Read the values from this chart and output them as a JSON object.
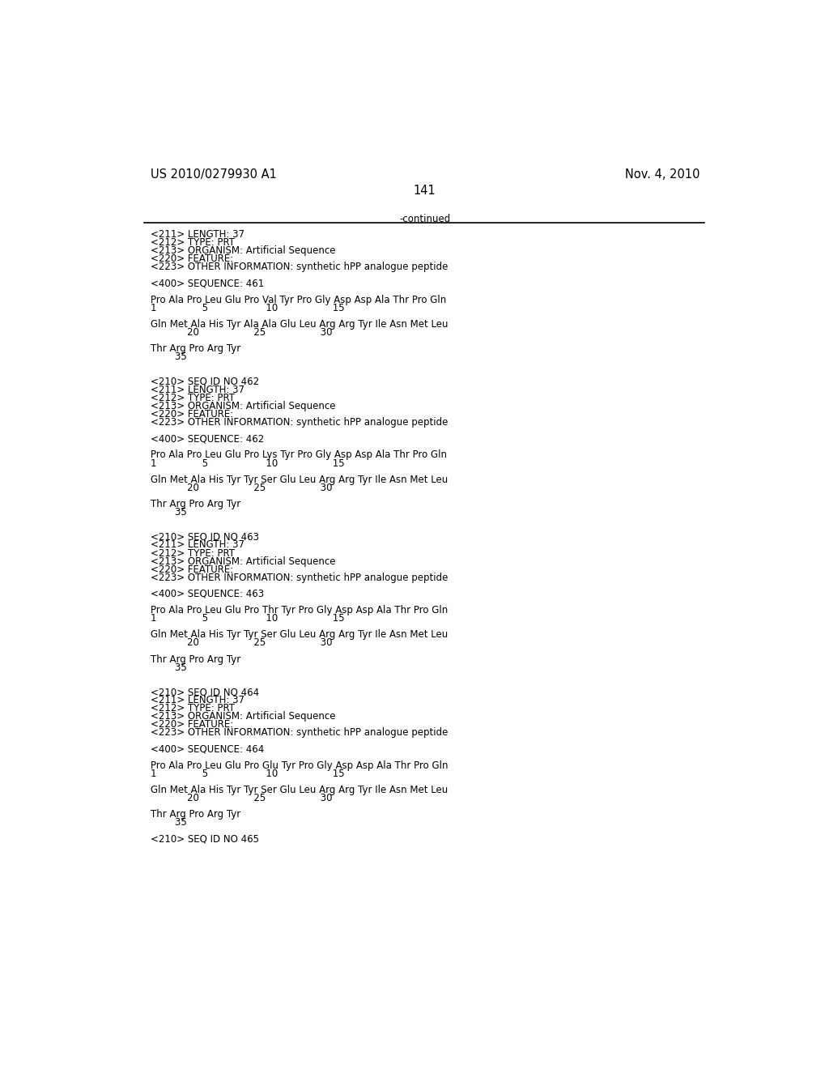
{
  "header_left": "US 2010/0279930 A1",
  "header_right": "Nov. 4, 2010",
  "page_number": "141",
  "continued_text": "-continued",
  "background_color": "#ffffff",
  "text_color": "#000000",
  "font_size_header": 10.5,
  "font_size_body": 8.5,
  "content_lines": [
    {
      "text": "<211> LENGTH: 37"
    },
    {
      "text": "<212> TYPE: PRT"
    },
    {
      "text": "<213> ORGANISM: Artificial Sequence"
    },
    {
      "text": "<220> FEATURE:"
    },
    {
      "text": "<223> OTHER INFORMATION: synthetic hPP analogue peptide"
    },
    {
      "text": ""
    },
    {
      "text": "<400> SEQUENCE: 461"
    },
    {
      "text": ""
    },
    {
      "text": "Pro Ala Pro Leu Glu Pro Val Tyr Pro Gly Asp Asp Ala Thr Pro Gln"
    },
    {
      "text": "1               5                   10                  15"
    },
    {
      "text": ""
    },
    {
      "text": "Gln Met Ala His Tyr Ala Ala Glu Leu Arg Arg Tyr Ile Asn Met Leu"
    },
    {
      "text": "            20                  25                  30"
    },
    {
      "text": ""
    },
    {
      "text": "Thr Arg Pro Arg Tyr"
    },
    {
      "text": "        35"
    },
    {
      "text": ""
    },
    {
      "text": ""
    },
    {
      "text": "<210> SEQ ID NO 462"
    },
    {
      "text": "<211> LENGTH: 37"
    },
    {
      "text": "<212> TYPE: PRT"
    },
    {
      "text": "<213> ORGANISM: Artificial Sequence"
    },
    {
      "text": "<220> FEATURE:"
    },
    {
      "text": "<223> OTHER INFORMATION: synthetic hPP analogue peptide"
    },
    {
      "text": ""
    },
    {
      "text": "<400> SEQUENCE: 462"
    },
    {
      "text": ""
    },
    {
      "text": "Pro Ala Pro Leu Glu Pro Lys Tyr Pro Gly Asp Asp Ala Thr Pro Gln"
    },
    {
      "text": "1               5                   10                  15"
    },
    {
      "text": ""
    },
    {
      "text": "Gln Met Ala His Tyr Tyr Ser Glu Leu Arg Arg Tyr Ile Asn Met Leu"
    },
    {
      "text": "            20                  25                  30"
    },
    {
      "text": ""
    },
    {
      "text": "Thr Arg Pro Arg Tyr"
    },
    {
      "text": "        35"
    },
    {
      "text": ""
    },
    {
      "text": ""
    },
    {
      "text": "<210> SEQ ID NO 463"
    },
    {
      "text": "<211> LENGTH: 37"
    },
    {
      "text": "<212> TYPE: PRT"
    },
    {
      "text": "<213> ORGANISM: Artificial Sequence"
    },
    {
      "text": "<220> FEATURE:"
    },
    {
      "text": "<223> OTHER INFORMATION: synthetic hPP analogue peptide"
    },
    {
      "text": ""
    },
    {
      "text": "<400> SEQUENCE: 463"
    },
    {
      "text": ""
    },
    {
      "text": "Pro Ala Pro Leu Glu Pro Thr Tyr Pro Gly Asp Asp Ala Thr Pro Gln"
    },
    {
      "text": "1               5                   10                  15"
    },
    {
      "text": ""
    },
    {
      "text": "Gln Met Ala His Tyr Tyr Ser Glu Leu Arg Arg Tyr Ile Asn Met Leu"
    },
    {
      "text": "            20                  25                  30"
    },
    {
      "text": ""
    },
    {
      "text": "Thr Arg Pro Arg Tyr"
    },
    {
      "text": "        35"
    },
    {
      "text": ""
    },
    {
      "text": ""
    },
    {
      "text": "<210> SEQ ID NO 464"
    },
    {
      "text": "<211> LENGTH: 37"
    },
    {
      "text": "<212> TYPE: PRT"
    },
    {
      "text": "<213> ORGANISM: Artificial Sequence"
    },
    {
      "text": "<220> FEATURE:"
    },
    {
      "text": "<223> OTHER INFORMATION: synthetic hPP analogue peptide"
    },
    {
      "text": ""
    },
    {
      "text": "<400> SEQUENCE: 464"
    },
    {
      "text": ""
    },
    {
      "text": "Pro Ala Pro Leu Glu Pro Glu Tyr Pro Gly Asp Asp Ala Thr Pro Gln"
    },
    {
      "text": "1               5                   10                  15"
    },
    {
      "text": ""
    },
    {
      "text": "Gln Met Ala His Tyr Tyr Ser Glu Leu Arg Arg Tyr Ile Asn Met Leu"
    },
    {
      "text": "            20                  25                  30"
    },
    {
      "text": ""
    },
    {
      "text": "Thr Arg Pro Arg Tyr"
    },
    {
      "text": "        35"
    },
    {
      "text": ""
    },
    {
      "text": "<210> SEQ ID NO 465"
    }
  ]
}
